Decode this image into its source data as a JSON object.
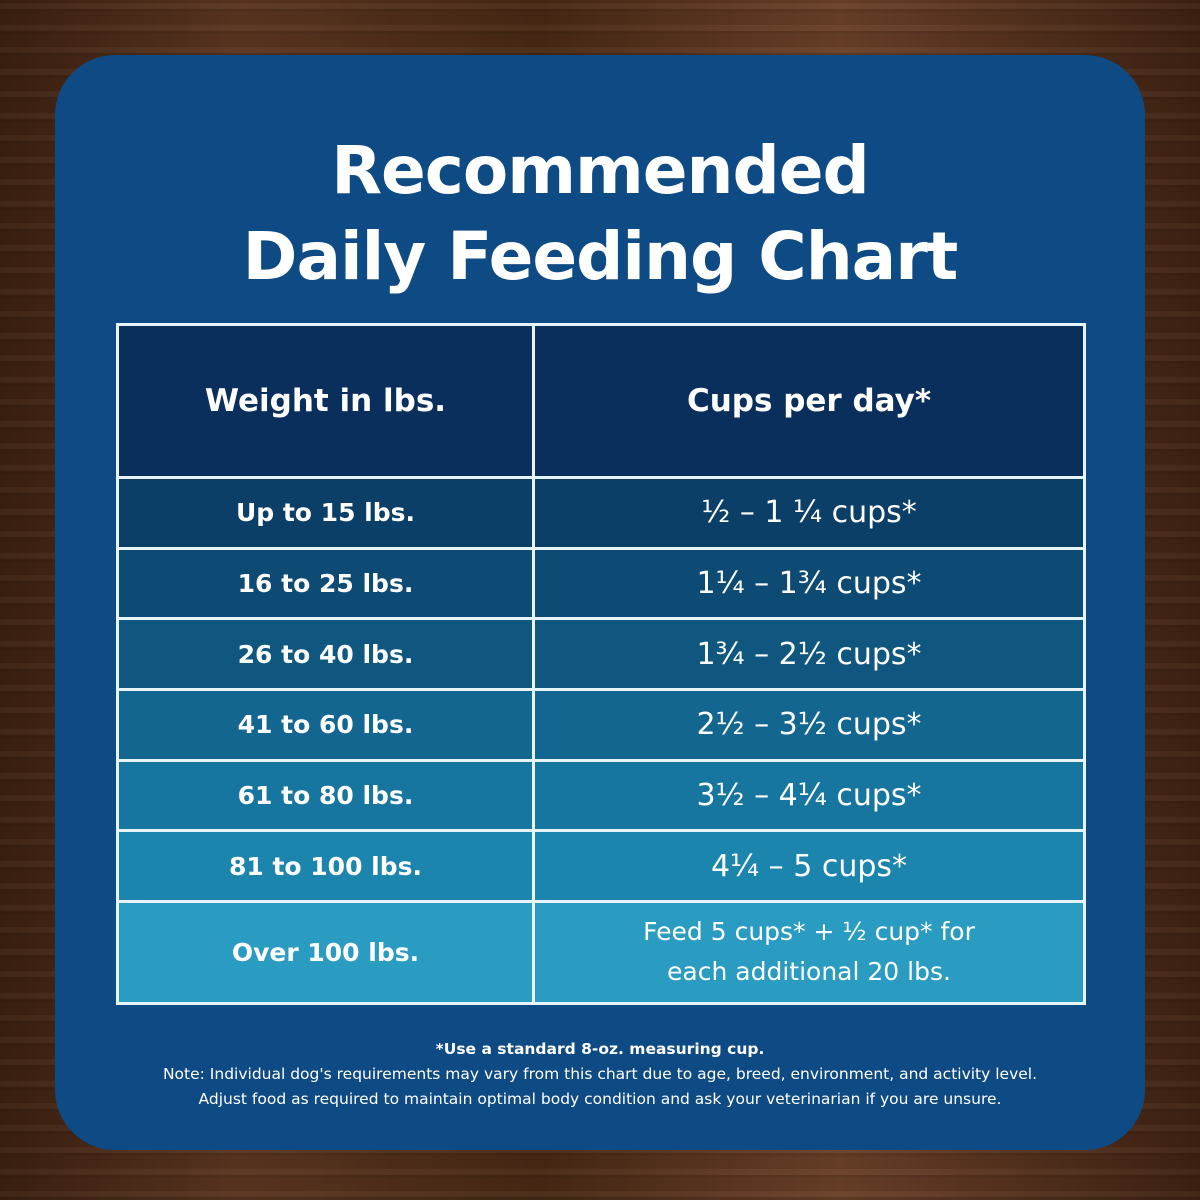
{
  "title_line1": "Recommended",
  "title_line2": "Daily Feeding Chart",
  "table": {
    "headers": [
      "Weight in lbs.",
      "Cups per day*"
    ],
    "rows": [
      {
        "weight": "Up to 15 lbs.",
        "cups": "½ – 1 ¼ cups*"
      },
      {
        "weight": "16 to 25 lbs.",
        "cups": "1¼ – 1¾  cups*"
      },
      {
        "weight": "26 to 40 lbs.",
        "cups": "1¾ – 2½ cups*"
      },
      {
        "weight": "41 to 60 lbs.",
        "cups": "2½ – 3½ cups*"
      },
      {
        "weight": "61 to 80 lbs.",
        "cups": "3½ – 4¼ cups*"
      },
      {
        "weight": "81 to 100 lbs.",
        "cups": "4¼ – 5 cups*"
      },
      {
        "weight": "Over 100 lbs.",
        "cups": "Feed 5 cups*  + ½ cup* for",
        "cups2": "each  additional 20 lbs."
      }
    ],
    "row_colors": [
      "#0c3f68",
      "#0d4a74",
      "#105780",
      "#136690",
      "#17769f",
      "#1c85ae",
      "#2a9cc2"
    ]
  },
  "footnote": "*Use a standard 8-oz. measuring cup.",
  "note_line1": "Note: Individual dog's requirements may vary from this chart due to age, breed, environment, and activity level.",
  "note_line2": "Adjust food as required to maintain optimal body condition and ask your veterinarian if you are unsure."
}
